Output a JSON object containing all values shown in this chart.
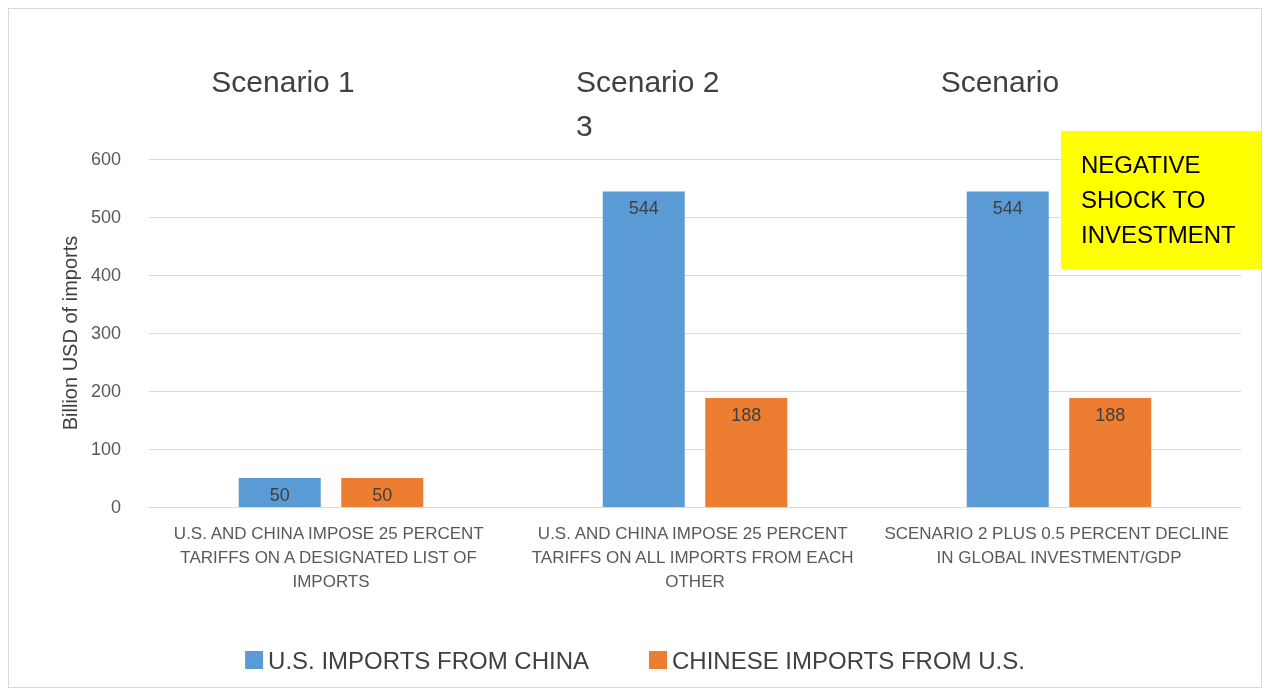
{
  "chart_data": {
    "type": "bar",
    "ylabel": "Billion USD of imports",
    "categories": [
      "U.S. AND CHINA IMPOSE 25 PERCENT TARIFFS ON A DESIGNATED LIST OF IMPORTS",
      "U.S. AND CHINA IMPOSE 25 PERCENT TARIFFS ON ALL IMPORTS FROM EACH OTHER",
      "SCENARIO 2 PLUS 0.5 PERCENT DECLINE IN GLOBAL INVESTMENT/GDP"
    ],
    "series": [
      {
        "name": "U.S. IMPORTS FROM CHINA",
        "color": "#5b9bd5",
        "values": [
          50,
          544,
          544
        ]
      },
      {
        "name": "CHINESE IMPORTS FROM U.S.",
        "color": "#ed7d31",
        "values": [
          50,
          188,
          188
        ]
      }
    ],
    "ylim": [
      0,
      600
    ],
    "yticks": [
      0,
      100,
      200,
      300,
      400,
      500,
      600
    ],
    "grid": "y",
    "legend": "bottom",
    "data_labels": true,
    "annotations": [
      "Scenario 1",
      "Scenario 2\n3",
      "Scenario",
      "NEGATIVE SHOCK TO INVESTMENT"
    ]
  }
}
